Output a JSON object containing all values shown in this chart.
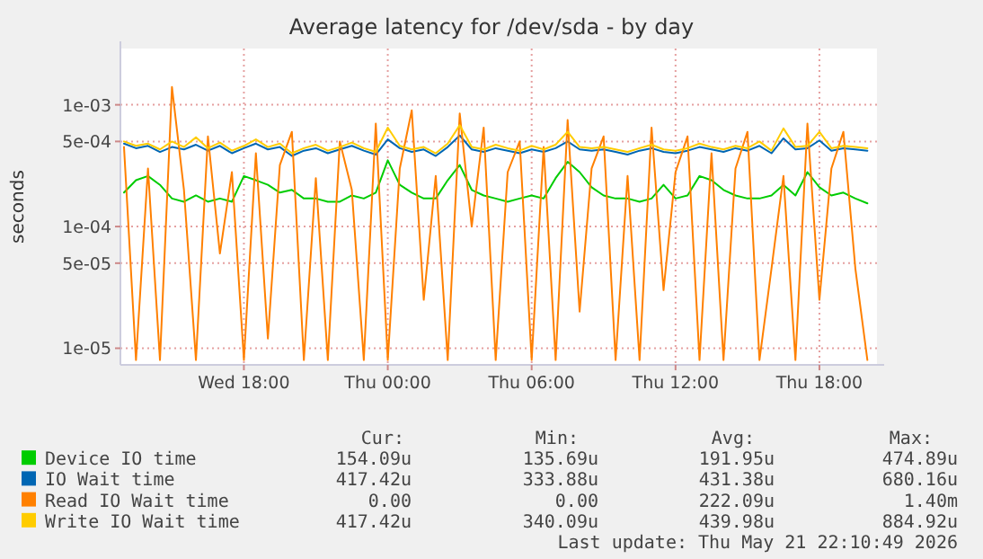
{
  "chart_data": {
    "type": "line",
    "title": "Average latency for /dev/sda - by day",
    "ylabel": "seconds",
    "log": "y",
    "grid": true,
    "legend": "bottom",
    "xlim": [
      "2026-05-20T12:51",
      "2026-05-21T20:24"
    ],
    "ylim": [
      7.3e-06,
      0.0029
    ],
    "xticks": [
      {
        "value": "2026-05-20T18:00",
        "label": "Wed 18:00"
      },
      {
        "value": "2026-05-21T00:00",
        "label": "Thu 00:00"
      },
      {
        "value": "2026-05-21T06:00",
        "label": "Thu 06:00"
      },
      {
        "value": "2026-05-21T12:00",
        "label": "Thu 12:00"
      },
      {
        "value": "2026-05-21T18:00",
        "label": "Thu 18:00"
      }
    ],
    "yticks": [
      {
        "value": 0.001,
        "label": "1e-03"
      },
      {
        "value": 0.0005,
        "label": "5e-04"
      },
      {
        "value": 0.0001,
        "label": "1e-04"
      },
      {
        "value": 5e-05,
        "label": "5e-05"
      },
      {
        "value": 1e-05,
        "label": "1e-05"
      }
    ],
    "x": [
      "2026-05-20T13:00",
      "2026-05-20T13:30",
      "2026-05-20T14:00",
      "2026-05-20T14:30",
      "2026-05-20T15:00",
      "2026-05-20T15:30",
      "2026-05-20T16:00",
      "2026-05-20T16:30",
      "2026-05-20T17:00",
      "2026-05-20T17:30",
      "2026-05-20T18:00",
      "2026-05-20T18:30",
      "2026-05-20T19:00",
      "2026-05-20T19:30",
      "2026-05-20T20:00",
      "2026-05-20T20:30",
      "2026-05-20T21:00",
      "2026-05-20T21:30",
      "2026-05-20T22:00",
      "2026-05-20T22:30",
      "2026-05-20T23:00",
      "2026-05-20T23:30",
      "2026-05-21T00:00",
      "2026-05-21T00:30",
      "2026-05-21T01:00",
      "2026-05-21T01:30",
      "2026-05-21T02:00",
      "2026-05-21T02:30",
      "2026-05-21T03:00",
      "2026-05-21T03:30",
      "2026-05-21T04:00",
      "2026-05-21T04:30",
      "2026-05-21T05:00",
      "2026-05-21T05:30",
      "2026-05-21T06:00",
      "2026-05-21T06:30",
      "2026-05-21T07:00",
      "2026-05-21T07:30",
      "2026-05-21T08:00",
      "2026-05-21T08:30",
      "2026-05-21T09:00",
      "2026-05-21T09:30",
      "2026-05-21T10:00",
      "2026-05-21T10:30",
      "2026-05-21T11:00",
      "2026-05-21T11:30",
      "2026-05-21T12:00",
      "2026-05-21T12:30",
      "2026-05-21T13:00",
      "2026-05-21T13:30",
      "2026-05-21T14:00",
      "2026-05-21T14:30",
      "2026-05-21T15:00",
      "2026-05-21T15:30",
      "2026-05-21T16:00",
      "2026-05-21T16:30",
      "2026-05-21T17:00",
      "2026-05-21T17:30",
      "2026-05-21T18:00",
      "2026-05-21T18:30",
      "2026-05-21T19:00",
      "2026-05-21T19:30",
      "2026-05-21T20:00"
    ],
    "series": [
      {
        "name": "Device IO time",
        "color": "#00cc00",
        "values": [
          0.00019,
          0.00024,
          0.00026,
          0.00022,
          0.00017,
          0.00016,
          0.00018,
          0.00016,
          0.00017,
          0.00016,
          0.00026,
          0.00024,
          0.00022,
          0.00019,
          0.0002,
          0.00017,
          0.00017,
          0.00016,
          0.00016,
          0.00018,
          0.00017,
          0.00019,
          0.00035,
          0.00022,
          0.00019,
          0.00017,
          0.00017,
          0.00024,
          0.00032,
          0.0002,
          0.00018,
          0.00017,
          0.00016,
          0.00017,
          0.00018,
          0.00017,
          0.00025,
          0.00034,
          0.00028,
          0.00021,
          0.00018,
          0.00017,
          0.00017,
          0.00016,
          0.00017,
          0.00022,
          0.00017,
          0.00018,
          0.00026,
          0.00024,
          0.0002,
          0.00018,
          0.00017,
          0.00017,
          0.00018,
          0.00022,
          0.00018,
          0.00028,
          0.00021,
          0.00018,
          0.00019,
          0.00017,
          0.000155
        ]
      },
      {
        "name": "IO Wait time",
        "color": "#0066b3",
        "values": [
          0.00048,
          0.00044,
          0.00046,
          0.00041,
          0.00045,
          0.00043,
          0.00047,
          0.00042,
          0.00046,
          0.0004,
          0.00044,
          0.00048,
          0.00043,
          0.00045,
          0.00038,
          0.00042,
          0.00044,
          0.0004,
          0.00043,
          0.00046,
          0.00042,
          0.00039,
          0.00052,
          0.00044,
          0.00041,
          0.00043,
          0.00038,
          0.00045,
          0.00056,
          0.00043,
          0.00041,
          0.00044,
          0.00042,
          0.0004,
          0.00043,
          0.00041,
          0.00044,
          0.0005,
          0.00043,
          0.00042,
          0.00043,
          0.00041,
          0.00039,
          0.00042,
          0.00044,
          0.00041,
          0.0004,
          0.00042,
          0.00045,
          0.00043,
          0.00041,
          0.00044,
          0.00042,
          0.00046,
          0.0004,
          0.00053,
          0.00043,
          0.00044,
          0.00051,
          0.00042,
          0.00044,
          0.00043,
          0.00042
        ]
      },
      {
        "name": "Read IO Wait time",
        "color": "#ff8000",
        "values": [
          0.00045,
          8e-06,
          0.0003,
          8e-06,
          0.0014,
          0.0002,
          8e-06,
          0.00055,
          6e-05,
          0.00028,
          8e-06,
          0.0004,
          1.2e-05,
          0.00032,
          0.0006,
          8e-06,
          0.00025,
          8e-06,
          0.0005,
          0.0002,
          8e-06,
          0.0007,
          8e-06,
          0.0003,
          0.0009,
          2.5e-05,
          0.00026,
          8e-06,
          0.00085,
          0.0001,
          0.00065,
          8e-06,
          0.00028,
          0.0005,
          8e-06,
          0.00045,
          8e-06,
          0.00075,
          2e-05,
          0.0003,
          0.00055,
          8e-06,
          0.00026,
          8e-06,
          0.00065,
          3e-05,
          0.00028,
          0.00055,
          8e-06,
          0.0004,
          8e-06,
          0.0003,
          0.0006,
          8e-06,
          4.5e-05,
          0.00026,
          8e-06,
          0.0007,
          2.5e-05,
          0.0003,
          0.0006,
          4.5e-05,
          8e-06
        ]
      },
      {
        "name": "Write IO Wait time",
        "color": "#ffcc00",
        "values": [
          0.0005,
          0.00046,
          0.00048,
          0.00043,
          0.0005,
          0.00045,
          0.00054,
          0.00044,
          0.00049,
          0.00042,
          0.00046,
          0.00052,
          0.00045,
          0.00048,
          0.0004,
          0.00044,
          0.00047,
          0.00042,
          0.00045,
          0.00049,
          0.00044,
          0.00041,
          0.00065,
          0.00046,
          0.00043,
          0.00045,
          0.0004,
          0.00048,
          0.00068,
          0.00045,
          0.00043,
          0.00047,
          0.00044,
          0.00042,
          0.00046,
          0.00043,
          0.00047,
          0.0006,
          0.00045,
          0.00044,
          0.00045,
          0.00043,
          0.00041,
          0.00044,
          0.00047,
          0.00043,
          0.00042,
          0.00044,
          0.00048,
          0.00045,
          0.00043,
          0.00046,
          0.00044,
          0.0005,
          0.00042,
          0.00064,
          0.00045,
          0.00046,
          0.0006,
          0.00044,
          0.00046,
          0.00045,
          0.00044
        ]
      }
    ],
    "annotations": [
      "Cur:",
      "Min:",
      "Avg:",
      "Max:",
      "154.09u",
      "135.69u",
      "191.95u",
      "474.89u",
      "417.42u",
      "333.88u",
      "431.38u",
      "680.16u",
      "0.00",
      "0.00",
      "222.09u",
      "1.40m",
      "417.42u",
      "340.09u",
      "439.98u",
      "884.92u",
      "Last update: Thu May 21 22:10:49 2026"
    ]
  }
}
